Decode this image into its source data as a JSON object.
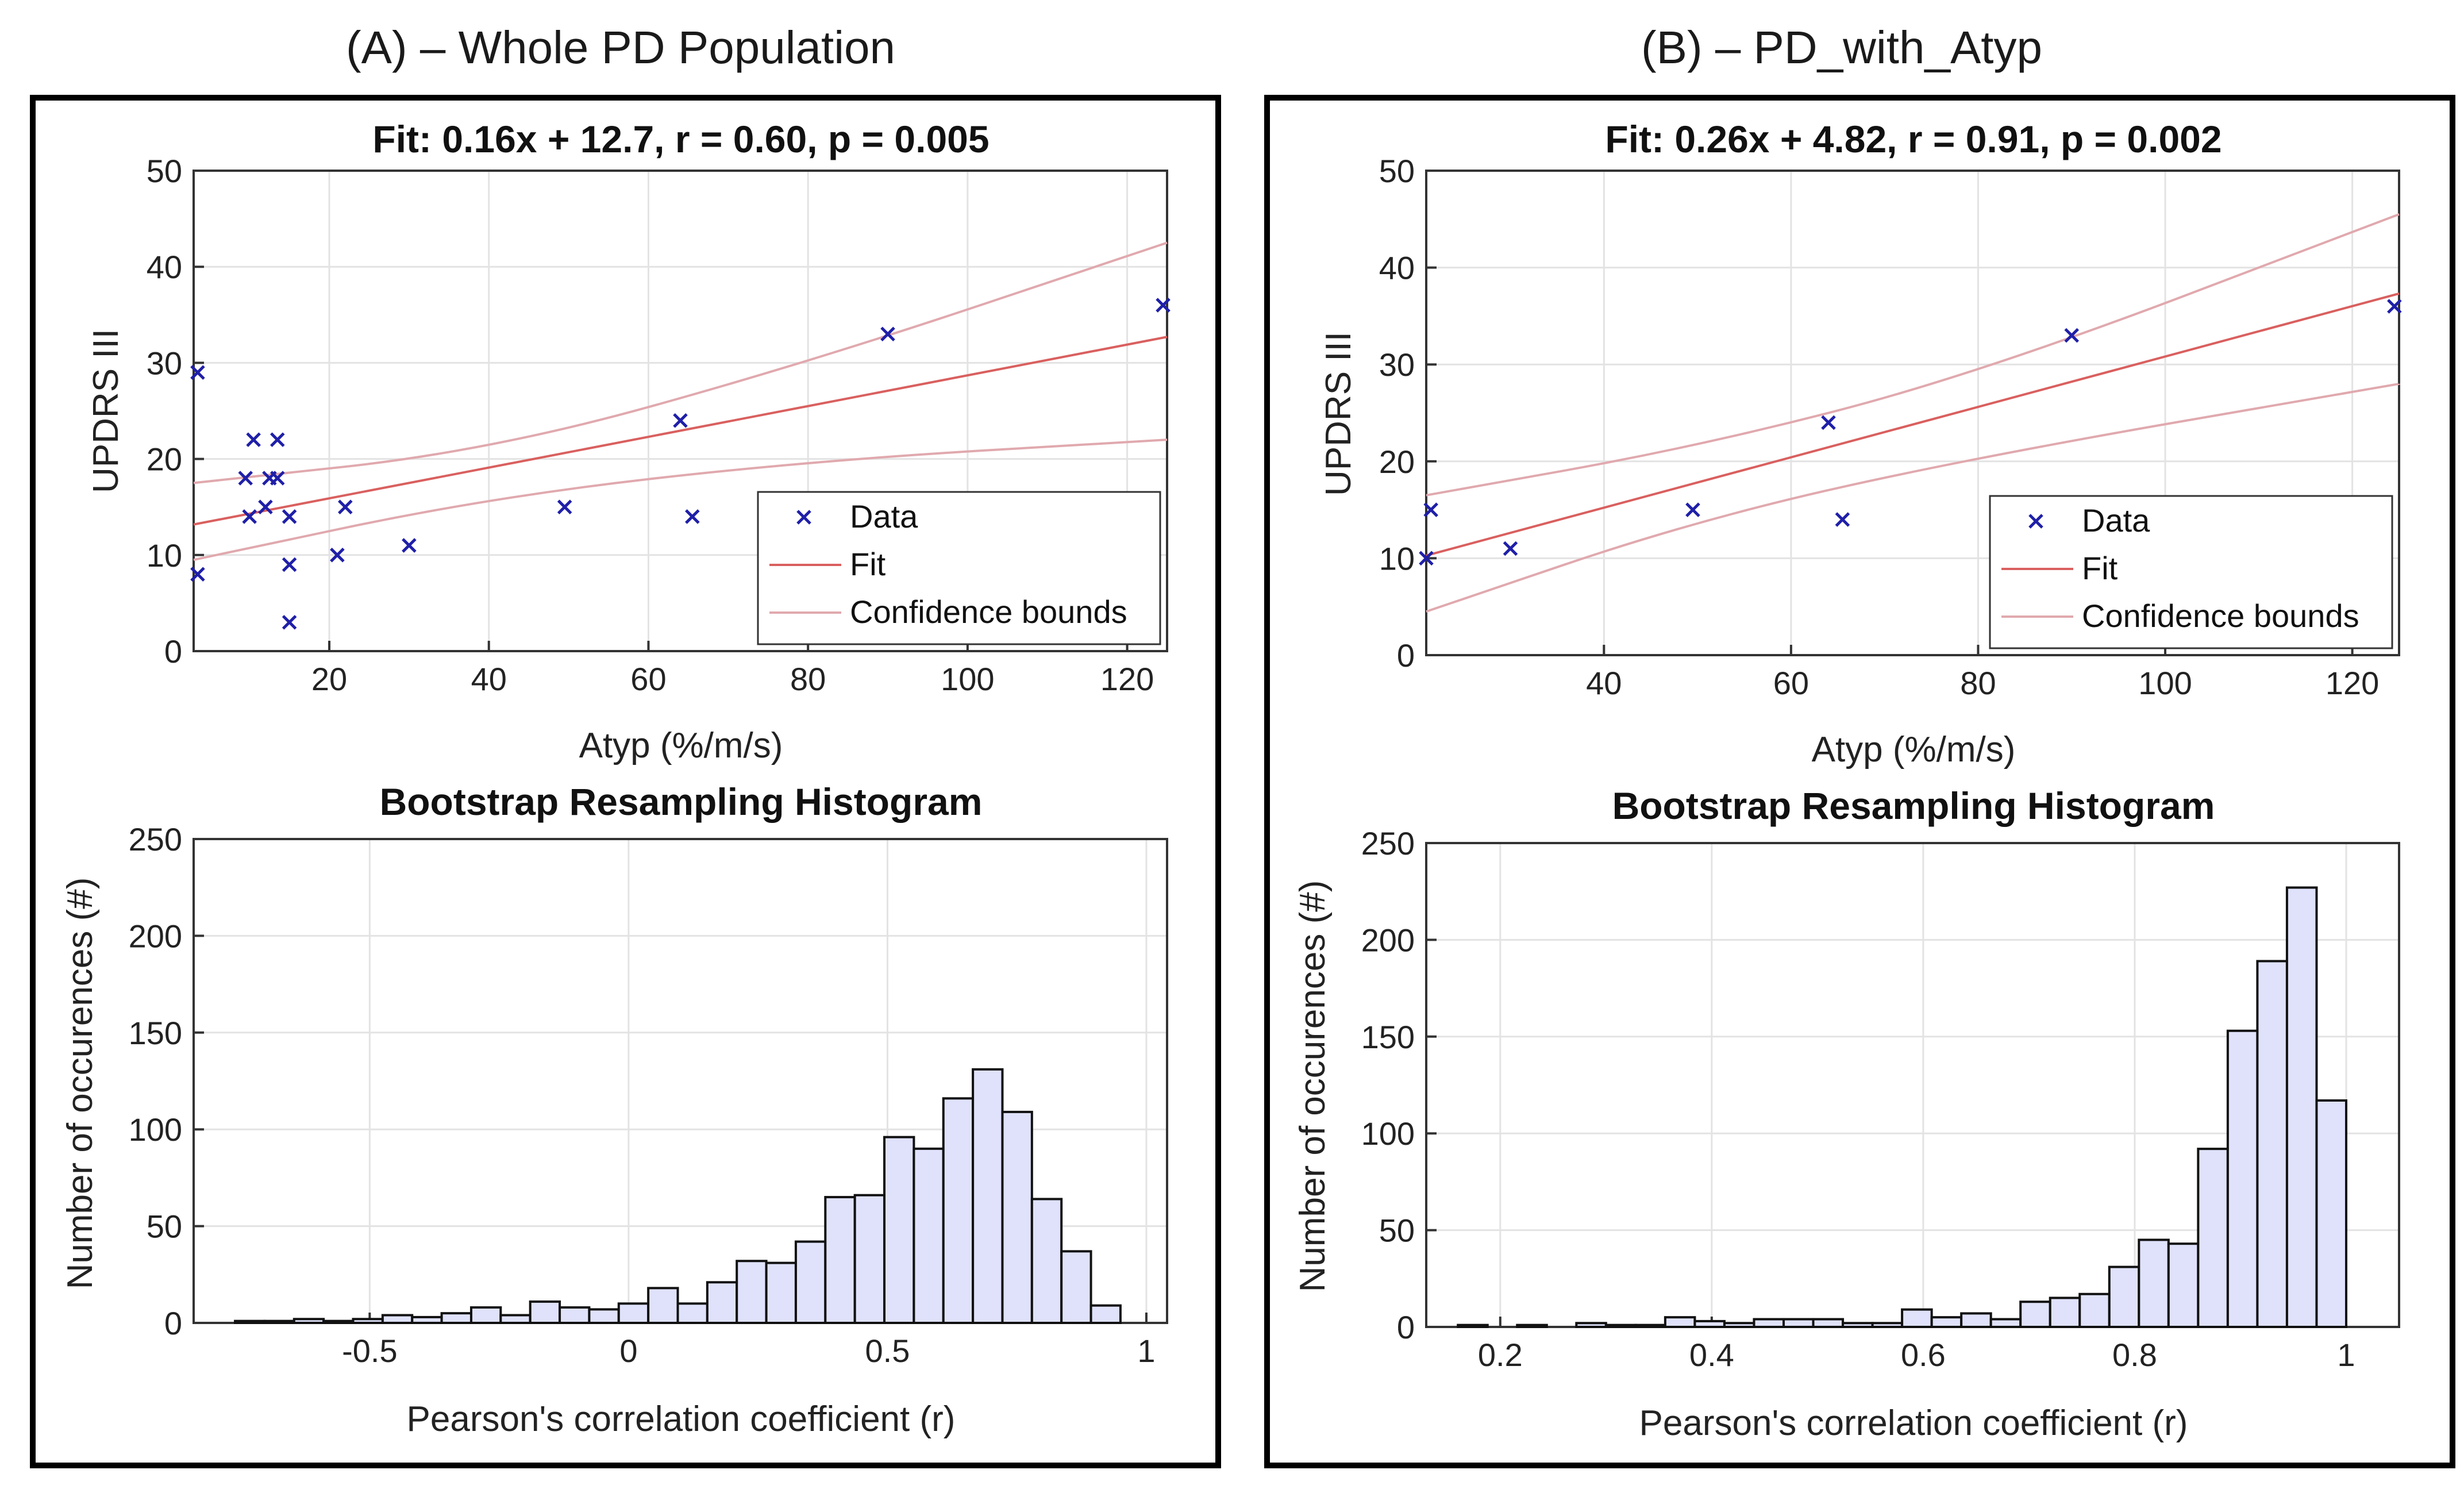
{
  "panels": [
    {
      "heading": "(A) – Whole PD Population",
      "scatter": {
        "title": "Fit: 0.16x + 12.7, r = 0.60, p = 0.005",
        "xlabel": "Atyp (%/m/s)",
        "ylabel": "UPDRS III",
        "xlim": [
          3,
          125
        ],
        "ylim": [
          0,
          50
        ],
        "xticks": [
          20,
          40,
          60,
          80,
          100,
          120
        ],
        "yticks": [
          0,
          10,
          20,
          30,
          40,
          50
        ],
        "points": [
          [
            3.5,
            8
          ],
          [
            3.5,
            29
          ],
          [
            9.5,
            18
          ],
          [
            10,
            14
          ],
          [
            10.5,
            22
          ],
          [
            12,
            15
          ],
          [
            12.5,
            18
          ],
          [
            13.5,
            22
          ],
          [
            13.5,
            18
          ],
          [
            15,
            14
          ],
          [
            15,
            9
          ],
          [
            15,
            3
          ],
          [
            21,
            10
          ],
          [
            22,
            15
          ],
          [
            30,
            11
          ],
          [
            49.5,
            15
          ],
          [
            64,
            24
          ],
          [
            65.5,
            14
          ],
          [
            90,
            33
          ],
          [
            124.5,
            36
          ]
        ],
        "fit": {
          "slope": 0.16,
          "intercept": 12.7
        },
        "bounds_upper": [
          [
            3,
            17.5
          ],
          [
            40,
            20.8
          ],
          [
            80,
            30
          ],
          [
            125,
            42.5
          ]
        ],
        "bounds_lower": [
          [
            3,
            9.5
          ],
          [
            40,
            16
          ],
          [
            80,
            19.8
          ],
          [
            125,
            22
          ]
        ],
        "legend": {
          "data": "Data",
          "fit": "Fit",
          "bounds": "Confidence bounds"
        }
      },
      "histogram": {
        "title": "Bootstrap Resampling Histogram",
        "xlabel": "Pearson's correlation coefficient (r)",
        "ylabel": "Number of occurences (#)",
        "xlim": [
          -0.84,
          1.04
        ],
        "ylim": [
          0,
          250
        ],
        "xticks": [
          -0.5,
          0,
          0.5,
          1
        ],
        "xtick_labels": [
          "-0.5",
          "0",
          "0.5",
          "1"
        ],
        "yticks": [
          0,
          50,
          100,
          150,
          200,
          250
        ],
        "bin_start": -0.76,
        "bin_width": 0.057,
        "counts": [
          1,
          1,
          2,
          1,
          2,
          4,
          3,
          5,
          8,
          4,
          11,
          8,
          7,
          10,
          18,
          10,
          21,
          32,
          31,
          42,
          65,
          66,
          96,
          90,
          116,
          131,
          109,
          64,
          37,
          9
        ]
      }
    },
    {
      "heading": "(B) – PD_with_Atyp",
      "scatter": {
        "title": "Fit: 0.26x + 4.82, r = 0.91, p = 0.002",
        "xlabel": "Atyp (%/m/s)",
        "ylabel": "UPDRS III",
        "xlim": [
          21,
          125
        ],
        "ylim": [
          0,
          50
        ],
        "xticks": [
          40,
          60,
          80,
          100,
          120
        ],
        "yticks": [
          0,
          10,
          20,
          30,
          40,
          50
        ],
        "points": [
          [
            21,
            10
          ],
          [
            21.5,
            15
          ],
          [
            30,
            11
          ],
          [
            49.5,
            15
          ],
          [
            64,
            24
          ],
          [
            65.5,
            14
          ],
          [
            90,
            33
          ],
          [
            124.5,
            36
          ]
        ],
        "fit": {
          "slope": 0.26,
          "intercept": 4.82
        },
        "bounds_upper": [
          [
            21,
            16.5
          ],
          [
            50,
            21.5
          ],
          [
            80,
            29
          ],
          [
            125,
            45.5
          ]
        ],
        "bounds_lower": [
          [
            21,
            4.5
          ],
          [
            50,
            14
          ],
          [
            80,
            20.5
          ],
          [
            125,
            28
          ]
        ],
        "legend": {
          "data": "Data",
          "fit": "Fit",
          "bounds": "Confidence bounds"
        }
      },
      "histogram": {
        "title": "Bootstrap Resampling Histogram",
        "xlabel": "Pearson's correlation coefficient (r)",
        "ylabel": "Number of occurences (#)",
        "xlim": [
          0.13,
          1.05
        ],
        "ylim": [
          0,
          250
        ],
        "xticks": [
          0.2,
          0.4,
          0.6,
          0.8,
          1
        ],
        "xtick_labels": [
          "0.2",
          "0.4",
          "0.6",
          "0.8",
          "1"
        ],
        "yticks": [
          0,
          50,
          100,
          150,
          200,
          250
        ],
        "bin_start": 0.16,
        "bin_width": 0.028,
        "counts": [
          1,
          0,
          1,
          0,
          2,
          1,
          1,
          5,
          3,
          2,
          4,
          4,
          4,
          2,
          2,
          9,
          5,
          7,
          4,
          13,
          15,
          17,
          31,
          45,
          43,
          92,
          153,
          189,
          227,
          117
        ]
      }
    }
  ],
  "chart_data": [
    {
      "type": "scatter",
      "title": "Fit: 0.16x + 12.7, r = 0.60, p = 0.005",
      "xlabel": "Atyp (%/m/s)",
      "ylabel": "UPDRS III",
      "x": [
        3.5,
        3.5,
        9.5,
        10,
        10.5,
        12,
        12.5,
        13.5,
        13.5,
        15,
        15,
        15,
        21,
        22,
        30,
        49.5,
        64,
        65.5,
        90,
        124.5
      ],
      "y": [
        8,
        29,
        18,
        14,
        22,
        15,
        18,
        22,
        18,
        14,
        9,
        3,
        10,
        15,
        11,
        15,
        24,
        14,
        33,
        36
      ],
      "fit_line": {
        "slope": 0.16,
        "intercept": 12.7
      },
      "legend": [
        "Data",
        "Fit",
        "Confidence bounds"
      ]
    },
    {
      "type": "bar",
      "title": "Bootstrap Resampling Histogram",
      "xlabel": "Pearson's correlation coefficient (r)",
      "ylabel": "Number of occurences (#)",
      "bin_start": -0.76,
      "bin_width": 0.057,
      "values": [
        1,
        1,
        2,
        1,
        2,
        4,
        3,
        5,
        8,
        4,
        11,
        8,
        7,
        10,
        18,
        10,
        21,
        32,
        31,
        42,
        65,
        66,
        96,
        90,
        116,
        131,
        109,
        64,
        37,
        9
      ],
      "ylim": [
        0,
        250
      ]
    },
    {
      "type": "scatter",
      "title": "Fit: 0.26x + 4.82, r = 0.91, p = 0.002",
      "xlabel": "Atyp (%/m/s)",
      "ylabel": "UPDRS III",
      "x": [
        21,
        21.5,
        30,
        49.5,
        64,
        65.5,
        90,
        124.5
      ],
      "y": [
        10,
        15,
        11,
        15,
        24,
        14,
        33,
        36
      ],
      "fit_line": {
        "slope": 0.26,
        "intercept": 4.82
      },
      "legend": [
        "Data",
        "Fit",
        "Confidence bounds"
      ]
    },
    {
      "type": "bar",
      "title": "Bootstrap Resampling Histogram",
      "xlabel": "Pearson's correlation coefficient (r)",
      "ylabel": "Number of occurences (#)",
      "bin_start": 0.16,
      "bin_width": 0.028,
      "values": [
        1,
        0,
        1,
        0,
        2,
        1,
        1,
        5,
        3,
        2,
        4,
        4,
        4,
        2,
        2,
        9,
        5,
        7,
        4,
        13,
        15,
        17,
        31,
        45,
        43,
        92,
        153,
        189,
        227,
        117
      ],
      "ylim": [
        0,
        250
      ]
    }
  ]
}
